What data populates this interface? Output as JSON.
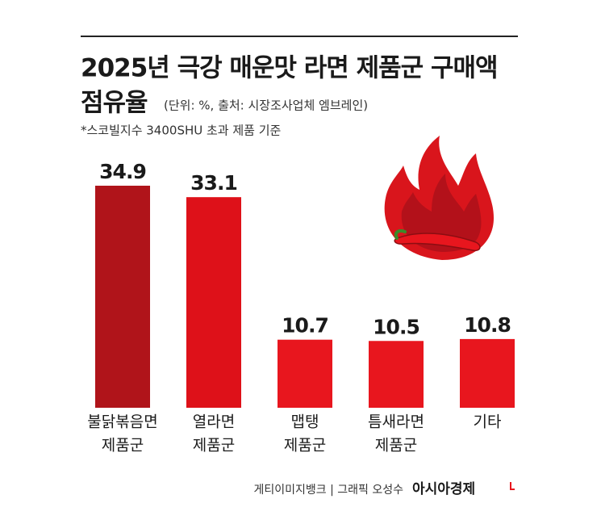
{
  "chart_data": {
    "type": "bar",
    "title": [
      "2025년 극강 매운맛 라면 제품군 구매액",
      "점유율"
    ],
    "note": "(단위: %, 출처: 시장조사업체 엠브레인)",
    "subtitle": "*스코빌지수 3400SHU 초과 제품 기준",
    "categories": [
      [
        "불닭볶음면",
        "제품군"
      ],
      [
        "열라면",
        "제품군"
      ],
      [
        "맵탱",
        "제품군"
      ],
      [
        "틈새라면",
        "제품군"
      ],
      [
        "기타"
      ]
    ],
    "values": [
      34.9,
      33.1,
      10.7,
      10.5,
      10.8
    ],
    "colors": [
      "#b0141a",
      "#de1119",
      "#e8161e",
      "#e8161e",
      "#e8161e"
    ],
    "credit": "게티이미지뱅크 | 그래픽 오성수",
    "logo": "아시아경제"
  }
}
